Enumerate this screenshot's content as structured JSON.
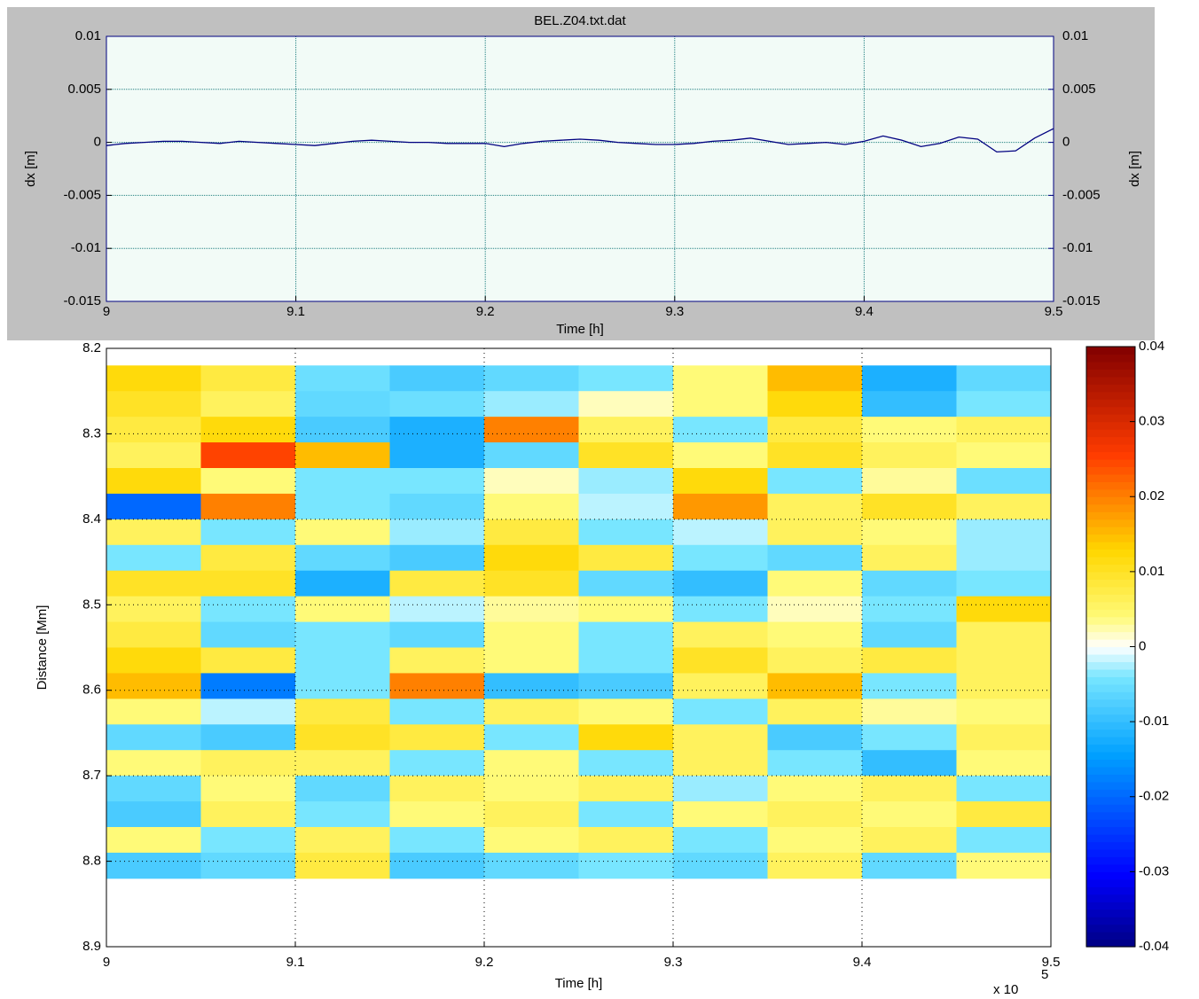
{
  "chart_data": [
    {
      "type": "line",
      "title": "BEL.Z04.txt.dat",
      "xlabel": "Time [h]",
      "ylabel": "dx [m]",
      "xlim": [
        9,
        9.5
      ],
      "xticks": [
        9,
        9.1,
        9.2,
        9.3,
        9.4,
        9.5
      ],
      "ylim": [
        -0.015,
        0.01
      ],
      "yticks": [
        -0.015,
        -0.01,
        -0.005,
        0,
        0.005,
        0.01
      ],
      "grid": true,
      "x": [
        9,
        9.01,
        9.02,
        9.03,
        9.04,
        9.05,
        9.06,
        9.07,
        9.08,
        9.09,
        9.1,
        9.11,
        9.12,
        9.13,
        9.14,
        9.15,
        9.16,
        9.17,
        9.18,
        9.19,
        9.2,
        9.21,
        9.22,
        9.23,
        9.24,
        9.25,
        9.26,
        9.27,
        9.28,
        9.29,
        9.3,
        9.31,
        9.32,
        9.33,
        9.34,
        9.35,
        9.36,
        9.37,
        9.38,
        9.39,
        9.4,
        9.41,
        9.42,
        9.43,
        9.44,
        9.45,
        9.46,
        9.47,
        9.48,
        9.49,
        9.5
      ],
      "series": [
        {
          "color": "#000080",
          "values": [
            -0.0003,
            -0.0001,
            0,
            0.0001,
            0.0001,
            0,
            -0.0001,
            0.0001,
            0,
            -0.0001,
            -0.0002,
            -0.0003,
            -0.0001,
            0.0001,
            0.0002,
            0.0001,
            0,
            0,
            -0.0001,
            -0.0001,
            -0.0001,
            -0.0004,
            -0.0001,
            0.0001,
            0.0002,
            0.0003,
            0.0002,
            0,
            -0.0001,
            -0.0002,
            -0.0002,
            -0.0001,
            0.0001,
            0.0002,
            0.0004,
            0.0001,
            -0.0002,
            -0.0001,
            0,
            -0.0002,
            0.0001,
            0.0006,
            0.0002,
            -0.0004,
            -0.0001,
            0.0005,
            0.0003,
            -0.0009,
            -0.0008,
            0.0004,
            0.0013
          ]
        }
      ]
    },
    {
      "type": "heatmap",
      "xlabel": "Time [h]",
      "ylabel": "Distance [Mm]",
      "x_multiplier": "x 10",
      "x_exponent": "5",
      "xlim": [
        9,
        9.5
      ],
      "xticks": [
        9,
        9.1,
        9.2,
        9.3,
        9.4,
        9.5
      ],
      "ylim": [
        8.2,
        8.9
      ],
      "yticks": [
        8.2,
        8.3,
        8.4,
        8.5,
        8.6,
        8.7,
        8.8,
        8.9
      ],
      "y_reversed": true,
      "grid": true,
      "x": [
        9.025,
        9.075,
        9.125,
        9.175,
        9.225,
        9.275,
        9.325,
        9.375,
        9.425,
        9.475
      ],
      "y": [
        8.235,
        8.265,
        8.295,
        8.325,
        8.355,
        8.385,
        8.415,
        8.445,
        8.475,
        8.505,
        8.535,
        8.565,
        8.595,
        8.625,
        8.655,
        8.685,
        8.715,
        8.745,
        8.775,
        8.805
      ],
      "z": [
        [
          0.012,
          0.008,
          -0.005,
          -0.008,
          -0.006,
          -0.004,
          0.004,
          0.015,
          -0.012,
          -0.006
        ],
        [
          0.01,
          0.006,
          -0.006,
          -0.005,
          -0.003,
          0.002,
          0.004,
          0.012,
          -0.01,
          -0.004
        ],
        [
          0.008,
          0.012,
          -0.008,
          -0.012,
          0.02,
          0.006,
          -0.004,
          0.008,
          0.004,
          0.006
        ],
        [
          0.006,
          0.025,
          0.015,
          -0.012,
          -0.006,
          0.01,
          0.004,
          0.01,
          0.006,
          0.004
        ],
        [
          0.012,
          0.004,
          -0.004,
          -0.004,
          0.002,
          -0.003,
          0.012,
          -0.004,
          0.003,
          -0.005
        ],
        [
          -0.02,
          0.02,
          -0.004,
          -0.006,
          0.004,
          -0.002,
          0.018,
          0.006,
          0.01,
          0.006
        ],
        [
          0.006,
          -0.004,
          0.004,
          -0.003,
          0.008,
          -0.004,
          -0.002,
          0.006,
          0.004,
          -0.003
        ],
        [
          -0.004,
          0.008,
          -0.006,
          -0.008,
          0.012,
          0.008,
          -0.004,
          -0.006,
          0.006,
          -0.003
        ],
        [
          0.01,
          0.01,
          -0.012,
          0.008,
          0.01,
          -0.006,
          -0.01,
          0.004,
          -0.006,
          -0.004
        ],
        [
          0.006,
          -0.004,
          0.004,
          -0.002,
          0.003,
          0.004,
          -0.004,
          0.002,
          -0.004,
          0.012
        ],
        [
          0.008,
          -0.006,
          -0.004,
          -0.006,
          0.004,
          -0.004,
          0.006,
          0.004,
          -0.006,
          0.006
        ],
        [
          0.012,
          0.008,
          -0.004,
          0.006,
          0.004,
          -0.004,
          0.01,
          0.006,
          0.008,
          0.006
        ],
        [
          0.015,
          -0.018,
          -0.004,
          0.02,
          -0.01,
          -0.008,
          0.006,
          0.015,
          -0.004,
          0.006
        ],
        [
          0.004,
          -0.002,
          0.008,
          -0.004,
          0.006,
          0.004,
          -0.004,
          0.006,
          0.003,
          0.004
        ],
        [
          -0.006,
          -0.008,
          0.01,
          0.008,
          -0.004,
          0.012,
          0.006,
          -0.008,
          -0.004,
          0.006
        ],
        [
          0.004,
          0.006,
          0.006,
          -0.004,
          0.004,
          -0.004,
          0.006,
          -0.004,
          -0.01,
          0.004
        ],
        [
          -0.006,
          0.004,
          -0.006,
          0.006,
          0.004,
          0.006,
          -0.003,
          0.004,
          0.006,
          -0.004
        ],
        [
          -0.008,
          0.006,
          -0.004,
          0.004,
          0.006,
          -0.004,
          0.004,
          0.006,
          0.004,
          0.008
        ],
        [
          0.004,
          -0.004,
          0.006,
          -0.004,
          0.004,
          0.006,
          -0.004,
          0.004,
          0.006,
          -0.004
        ],
        [
          -0.008,
          -0.006,
          0.008,
          -0.008,
          -0.006,
          -0.004,
          -0.006,
          0.006,
          -0.006,
          0.004
        ]
      ],
      "colorbar": {
        "lim": [
          -0.04,
          0.04
        ],
        "ticks": [
          -0.04,
          -0.03,
          -0.02,
          -0.01,
          0,
          0.01,
          0.02,
          0.03,
          0.04
        ]
      }
    }
  ]
}
